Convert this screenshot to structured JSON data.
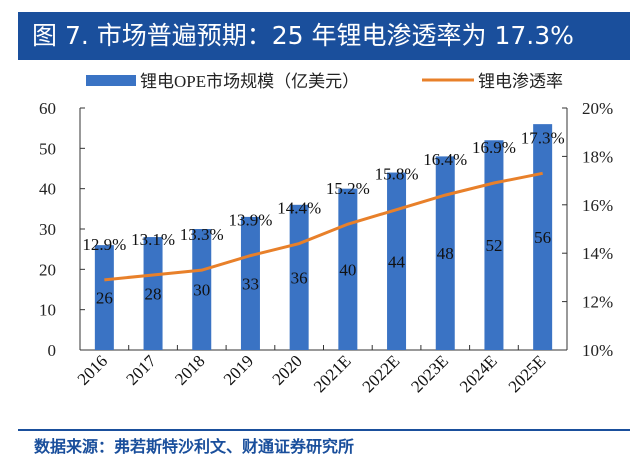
{
  "title": "图 7. 市场普遍预期：25 年锂电渗透率为 17.3%",
  "source": "数据来源：弗若斯特沙利文、财通证券研究所",
  "chart_data": {
    "type": "bar+line",
    "categories": [
      "2016",
      "2017",
      "2018",
      "2019",
      "2020",
      "2021E",
      "2022E",
      "2023E",
      "2024E",
      "2025E"
    ],
    "series": [
      {
        "name": "锂电OPE市场规模（亿美元）",
        "type": "bar",
        "axis": "left",
        "color": "#3a73c4",
        "values": [
          26,
          28,
          30,
          33,
          36,
          40,
          44,
          48,
          52,
          56
        ]
      },
      {
        "name": "锂电渗透率",
        "type": "line",
        "axis": "right",
        "color": "#e8802a",
        "values": [
          12.9,
          13.1,
          13.3,
          13.9,
          14.4,
          15.2,
          15.8,
          16.4,
          16.9,
          17.3
        ]
      }
    ],
    "bar_labels": [
      "26",
      "28",
      "30",
      "33",
      "36",
      "40",
      "44",
      "48",
      "52",
      "56"
    ],
    "line_labels": [
      "12.9%",
      "13.1%",
      "13.3%",
      "13.9%",
      "14.4%",
      "15.2%",
      "15.8%",
      "16.4%",
      "16.9%",
      "17.3%"
    ],
    "y_left": {
      "range": [
        0,
        60
      ],
      "ticks": [
        "0",
        "10",
        "20",
        "30",
        "40",
        "50",
        "60"
      ]
    },
    "y_right": {
      "range": [
        10,
        20
      ],
      "ticks": [
        "10%",
        "12%",
        "14%",
        "16%",
        "18%",
        "20%"
      ]
    },
    "legend": "top",
    "grid": false
  }
}
